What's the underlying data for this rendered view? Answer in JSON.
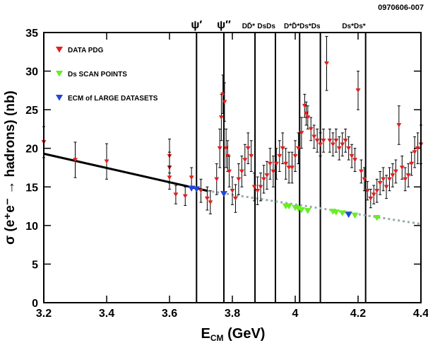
{
  "chart_data": {
    "type": "scatter",
    "figure_id": "0970606-007",
    "x_label": {
      "main": "E",
      "sub": "CM",
      "rest": " (GeV)"
    },
    "y_label": "σ (e⁺e⁻ → hadrons) (nb)",
    "xlim": [
      3.2,
      4.4
    ],
    "ylim": [
      0,
      35
    ],
    "xticks": [
      3.2,
      3.4,
      3.6,
      3.8,
      4,
      4.2,
      4.4
    ],
    "yticks": [
      0,
      5,
      10,
      15,
      20,
      25,
      30,
      35
    ],
    "legend": "upper left",
    "series": [
      {
        "name": "DATA PDG",
        "color": "#e02020",
        "x": [
          3.2,
          3.3,
          3.4,
          3.6,
          3.6,
          3.6,
          3.62,
          3.65,
          3.67,
          3.7,
          3.72,
          3.73,
          3.75,
          3.76,
          3.765,
          3.77,
          3.775,
          3.78,
          3.785,
          3.79,
          3.8,
          3.81,
          3.82,
          3.83,
          3.84,
          3.85,
          3.86,
          3.87,
          3.88,
          3.89,
          3.9,
          3.91,
          3.92,
          3.93,
          3.94,
          3.95,
          3.96,
          3.97,
          3.98,
          3.99,
          4.0,
          4.01,
          4.02,
          4.03,
          4.035,
          4.04,
          4.05,
          4.06,
          4.07,
          4.08,
          4.09,
          4.1,
          4.11,
          4.12,
          4.13,
          4.14,
          4.15,
          4.16,
          4.17,
          4.18,
          4.19,
          4.2,
          4.21,
          4.22,
          4.23,
          4.24,
          4.25,
          4.26,
          4.27,
          4.28,
          4.29,
          4.3,
          4.31,
          4.32,
          4.33,
          4.34,
          4.35,
          4.36,
          4.37,
          4.38,
          4.39,
          4.4
        ],
        "values": [
          20.8,
          18.5,
          18.3,
          19,
          17.5,
          16.2,
          14,
          13.8,
          16.2,
          14.5,
          13.5,
          13,
          16,
          20,
          24,
          27,
          26,
          20,
          19,
          17,
          14.5,
          13.5,
          16,
          17,
          18.5,
          20,
          19,
          15,
          14.5,
          15,
          16,
          16.5,
          18,
          17,
          18,
          19,
          20,
          18,
          17.5,
          17.5,
          19,
          20,
          22,
          25.5,
          24.5,
          24,
          22.5,
          21.5,
          21,
          20.5,
          21,
          31,
          21,
          20.5,
          21,
          20,
          20.5,
          21,
          20,
          19,
          18.5,
          27.5,
          17,
          16,
          14.5,
          13.5,
          14,
          14.5,
          15.5,
          16,
          15,
          16,
          16.5,
          17,
          23,
          17.5,
          16,
          16.5,
          18,
          19.5,
          20,
          20.5
        ],
        "errors": [
          2,
          2.3,
          2.3,
          2.2,
          2,
          1.5,
          1.2,
          1.2,
          1.3,
          1.5,
          1.5,
          1.5,
          2,
          2.5,
          3,
          2.5,
          2.5,
          2.5,
          2,
          2,
          1.8,
          1.8,
          2,
          2,
          2,
          2,
          2,
          1.8,
          1.8,
          1.8,
          1.8,
          1.8,
          2,
          2,
          2,
          2,
          2,
          2,
          2,
          2,
          2,
          2,
          2,
          1.5,
          1.5,
          1.5,
          1.5,
          1.5,
          1.5,
          1.5,
          1.5,
          3.5,
          1.5,
          1.5,
          1.5,
          1.5,
          1.5,
          1.5,
          1.5,
          1.5,
          1.5,
          2.5,
          1.5,
          1.5,
          1.2,
          1.2,
          1.2,
          1.5,
          1.5,
          1.5,
          1.5,
          1.5,
          1.5,
          1.5,
          2.5,
          1.5,
          1.5,
          1.5,
          1.5,
          2,
          2,
          2.5
        ]
      },
      {
        "name": "Ds SCAN POINTS",
        "color": "#66ee22",
        "x": [
          3.97,
          3.98,
          4.0,
          4.01,
          4.02,
          4.04,
          4.12,
          4.13,
          4.15,
          4.17,
          4.19,
          4.26
        ],
        "values": [
          12.5,
          12.5,
          12.3,
          12.2,
          12,
          11.9,
          11.8,
          11.7,
          11.6,
          11.5,
          11.3,
          11
        ]
      },
      {
        "name": "ECM of LARGE DATASETS",
        "color": "#2244dd",
        "x": [
          3.67,
          3.686,
          3.773,
          4.17
        ],
        "values": [
          14.8,
          14.7,
          14.1,
          11.4
        ]
      }
    ],
    "fit_lines": [
      {
        "x": [
          3.2,
          3.72
        ],
        "values": [
          19.3,
          14.5
        ],
        "color": "#000000",
        "style": "solid"
      },
      {
        "x": [
          3.72,
          4.4
        ],
        "values": [
          14.5,
          10.2
        ],
        "color": "#99aaaa",
        "style": "dotted"
      }
    ],
    "annotations": [
      {
        "label": "ψ′",
        "x": 3.686
      },
      {
        "label": "ψ″",
        "x": 3.773
      },
      {
        "label": "DD̄*",
        "x": 3.872
      },
      {
        "label": "DsDs",
        "x": 3.937
      },
      {
        "label": "D*D̄*",
        "x": 4.014
      },
      {
        "label": "Ds*Ds",
        "x": 4.08
      },
      {
        "label": "Ds*Ds*",
        "x": 4.224
      }
    ]
  }
}
